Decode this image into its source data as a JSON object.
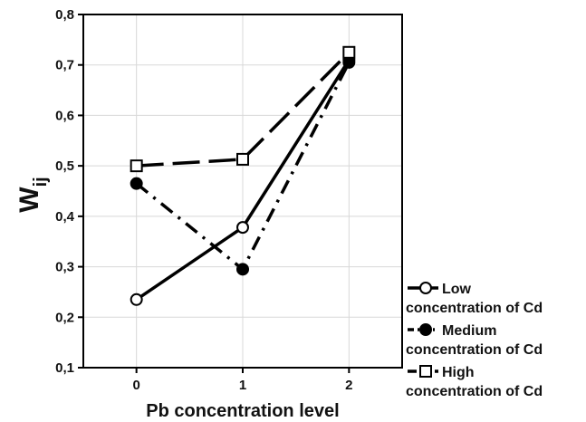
{
  "chart_data": {
    "type": "line",
    "x": [
      0,
      1,
      2
    ],
    "xticks": [
      "0",
      "1",
      "2"
    ],
    "xlim": [
      -0.5,
      2.5
    ],
    "ylim": [
      0.1,
      0.8
    ],
    "yticks": [
      "0,1",
      "0,2",
      "0,3",
      "0,4",
      "0,5",
      "0,6",
      "0,7",
      "0,8"
    ],
    "xlabel": "Pb concentration level",
    "ylabel_main": "W",
    "ylabel_sub": "ij",
    "grid": true,
    "legend_position": "right-bottom",
    "series": [
      {
        "name_line1": "Low",
        "name_line2": "concentration of Cd",
        "values": [
          0.235,
          0.378,
          0.71
        ],
        "marker": "open-circle",
        "dash": "solid"
      },
      {
        "name_line1": "Medium",
        "name_line2": "concentration of Cd",
        "values": [
          0.465,
          0.295,
          0.705
        ],
        "marker": "filled-circle",
        "dash": "dash-dot"
      },
      {
        "name_line1": "High",
        "name_line2": "concentration of Cd",
        "values": [
          0.5,
          0.513,
          0.725
        ],
        "marker": "open-square",
        "dash": "long-dash"
      }
    ]
  }
}
